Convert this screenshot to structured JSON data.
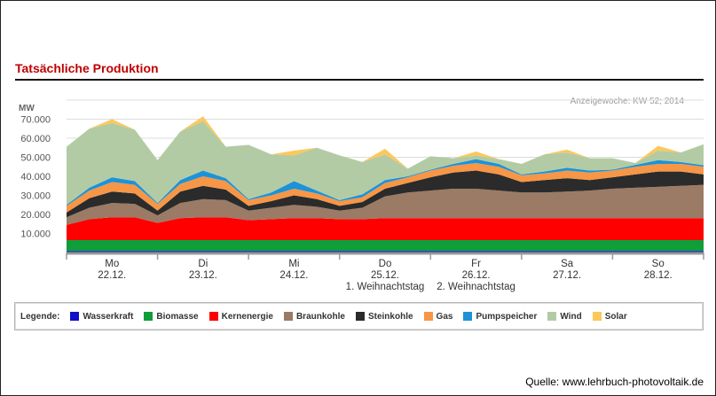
{
  "title": "Tatsächliche Produktion",
  "note": "Anzeigewoche: KW 52; 2014",
  "source": "Quelle: www.lehrbuch-photovoltaik.de",
  "legend_label": "Legende:",
  "chart_data": {
    "type": "area",
    "stacked": true,
    "ylabel": "MW",
    "ylim": [
      0,
      80000
    ],
    "yticks": [
      "10.000",
      "20.000",
      "30.000",
      "40.000",
      "50.000",
      "60.000",
      "70.000"
    ],
    "ytick_values": [
      10000,
      20000,
      30000,
      40000,
      50000,
      60000,
      70000
    ],
    "grid": true,
    "legend_position": "bottom",
    "x_unit": "day index (0 = Mo 22.12. 00:00)",
    "xlim": [
      0,
      7
    ],
    "days": [
      {
        "day": "Mo",
        "date": "22.12.",
        "holiday": ""
      },
      {
        "day": "Di",
        "date": "23.12.",
        "holiday": ""
      },
      {
        "day": "Mi",
        "date": "24.12.",
        "holiday": ""
      },
      {
        "day": "Do",
        "date": "25.12.",
        "holiday": "1. Weihnachtstag"
      },
      {
        "day": "Fr",
        "date": "26.12.",
        "holiday": "2. Weihnachtstag"
      },
      {
        "day": "Sa",
        "date": "27.12.",
        "holiday": ""
      },
      {
        "day": "So",
        "date": "28.12.",
        "holiday": ""
      }
    ],
    "x": [
      0,
      0.25,
      0.5,
      0.75,
      1,
      1.25,
      1.5,
      1.75,
      2,
      2.25,
      2.5,
      2.75,
      3,
      3.25,
      3.5,
      3.75,
      4,
      4.25,
      4.5,
      4.75,
      5,
      5.25,
      5.5,
      5.75,
      6,
      6.25,
      6.5,
      6.75,
      7
    ],
    "series": [
      {
        "name": "Wasserkraft",
        "color": "#1010c8",
        "values": [
          800,
          800,
          800,
          800,
          800,
          800,
          800,
          800,
          800,
          800,
          800,
          800,
          800,
          800,
          800,
          800,
          800,
          800,
          800,
          800,
          800,
          800,
          800,
          800,
          800,
          800,
          800,
          800,
          800
        ]
      },
      {
        "name": "Biomasse",
        "color": "#0e9e3a",
        "values": [
          5700,
          5700,
          5700,
          5700,
          5700,
          5700,
          5700,
          5700,
          5700,
          5700,
          5700,
          5700,
          5700,
          5700,
          5700,
          5700,
          5700,
          5700,
          5700,
          5700,
          5700,
          5700,
          5700,
          5700,
          5700,
          5700,
          5700,
          5700,
          5700
        ]
      },
      {
        "name": "Kernenergie",
        "color": "#ff0000",
        "values": [
          8000,
          11000,
          12000,
          12000,
          9000,
          11500,
          12000,
          12000,
          10500,
          11000,
          11500,
          11500,
          11000,
          11000,
          11500,
          11500,
          11500,
          11500,
          11500,
          11500,
          11500,
          11500,
          11500,
          11500,
          11500,
          11500,
          11500,
          11500,
          11500
        ]
      },
      {
        "name": "Braunkohle",
        "color": "#9b7b65",
        "values": [
          4000,
          6000,
          7500,
          7000,
          4000,
          8000,
          9500,
          9000,
          5000,
          6000,
          7000,
          6000,
          4500,
          6000,
          11500,
          13500,
          14500,
          15500,
          15500,
          14500,
          13500,
          13500,
          14000,
          14500,
          15500,
          16000,
          16500,
          17000,
          17500
        ]
      },
      {
        "name": "Steinkohle",
        "color": "#2b2b2b",
        "values": [
          2500,
          5000,
          6000,
          5500,
          2500,
          6000,
          7000,
          5500,
          2500,
          3500,
          5000,
          4000,
          2500,
          3000,
          4000,
          5000,
          7000,
          8500,
          9500,
          8500,
          5500,
          6500,
          7000,
          5500,
          6000,
          7000,
          8000,
          7500,
          5500
        ]
      },
      {
        "name": "Gas",
        "color": "#f79646",
        "values": [
          3500,
          4000,
          5000,
          4500,
          3500,
          4000,
          5000,
          4500,
          3000,
          3000,
          3500,
          3000,
          2500,
          2500,
          3000,
          3000,
          3500,
          3500,
          4000,
          4000,
          3500,
          3500,
          4000,
          4000,
          3500,
          4000,
          4000,
          4000,
          4000
        ]
      },
      {
        "name": "Pumpspeicher",
        "color": "#1c93d8",
        "values": [
          500,
          1500,
          2500,
          2000,
          500,
          2000,
          3000,
          1500,
          500,
          1500,
          4000,
          1500,
          500,
          1500,
          1500,
          500,
          500,
          1000,
          2000,
          1500,
          500,
          1000,
          1500,
          1000,
          500,
          1000,
          2000,
          1000,
          800
        ]
      },
      {
        "name": "Wind",
        "color": "#b3cba4",
        "values": [
          30500,
          31000,
          28500,
          27000,
          22500,
          25500,
          26000,
          16500,
          28500,
          20000,
          13500,
          22500,
          23500,
          17000,
          13500,
          4000,
          7000,
          3000,
          2000,
          2500,
          5500,
          9000,
          8000,
          6500,
          6000,
          1000,
          5000,
          5000,
          11000
        ]
      },
      {
        "name": "Solar",
        "color": "#fcc85c",
        "values": [
          0,
          0,
          2000,
          0,
          0,
          0,
          2500,
          0,
          0,
          0,
          2500,
          0,
          0,
          0,
          3000,
          0,
          0,
          0,
          2000,
          0,
          0,
          0,
          1500,
          0,
          0,
          0,
          2500,
          0,
          0
        ]
      }
    ]
  }
}
